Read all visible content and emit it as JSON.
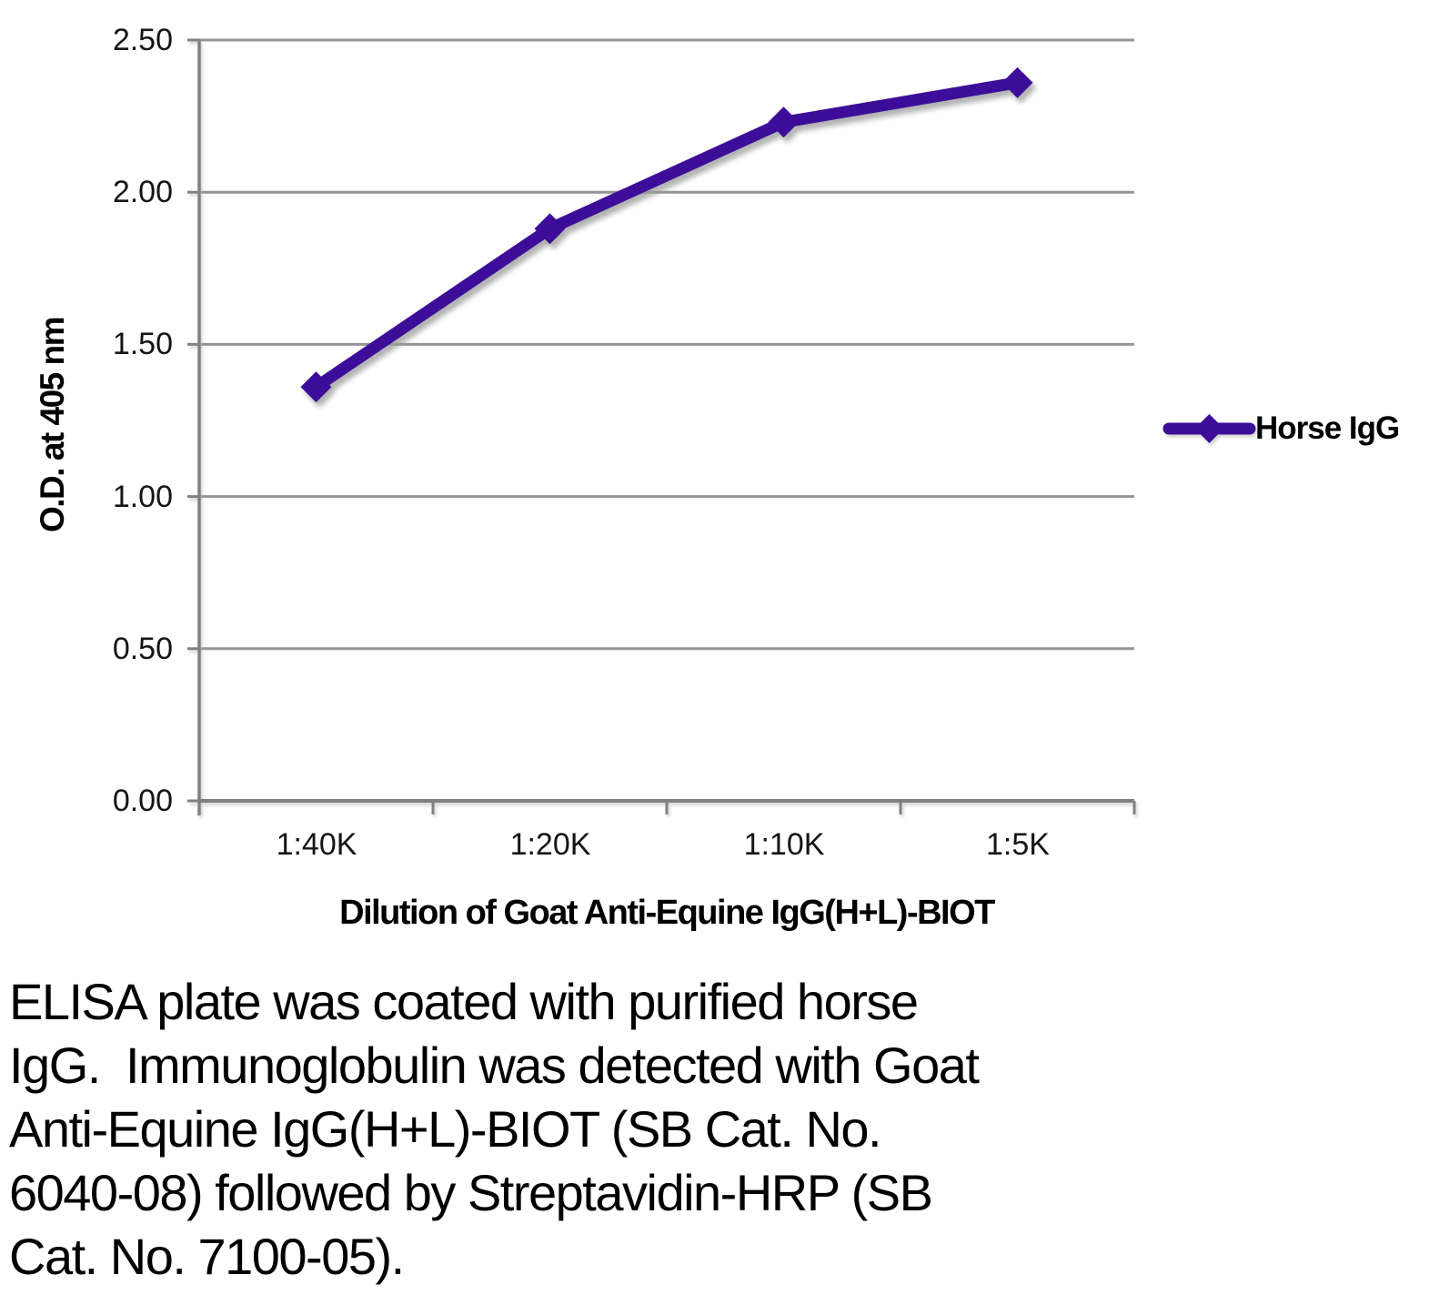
{
  "chart_data": {
    "type": "line",
    "categories": [
      "1:40K",
      "1:20K",
      "1:10K",
      "1:5K"
    ],
    "series": [
      {
        "name": "Horse IgG",
        "values": [
          1.36,
          1.88,
          2.23,
          2.36
        ],
        "color": "#3D1199",
        "marker": "diamond"
      }
    ],
    "title": "",
    "xlabel": "Dilution of Goat Anti-Equine IgG(H+L)-BIOT",
    "ylabel": "O.D. at 405 nm",
    "ylim": [
      0.0,
      2.5
    ],
    "y_ticks": [
      "2.50",
      "2.00",
      "1.50",
      "1.00",
      "0.50",
      "0.00"
    ],
    "grid": true,
    "legend_position": "right"
  },
  "legend": {
    "label": "Horse IgG"
  },
  "colors": {
    "series": "#3D1199",
    "gridline": "#949494",
    "axis": "#808080",
    "shadow": "#9a9a9a"
  },
  "caption": {
    "lines": [
      "ELISA plate was coated with purified horse",
      "IgG.  Immunoglobulin was detected with Goat",
      "Anti-Equine IgG(H+L)-BIOT (SB Cat. No.",
      "6040-08) followed by Streptavidin-HRP (SB",
      "Cat. No. 7100-05)."
    ]
  }
}
